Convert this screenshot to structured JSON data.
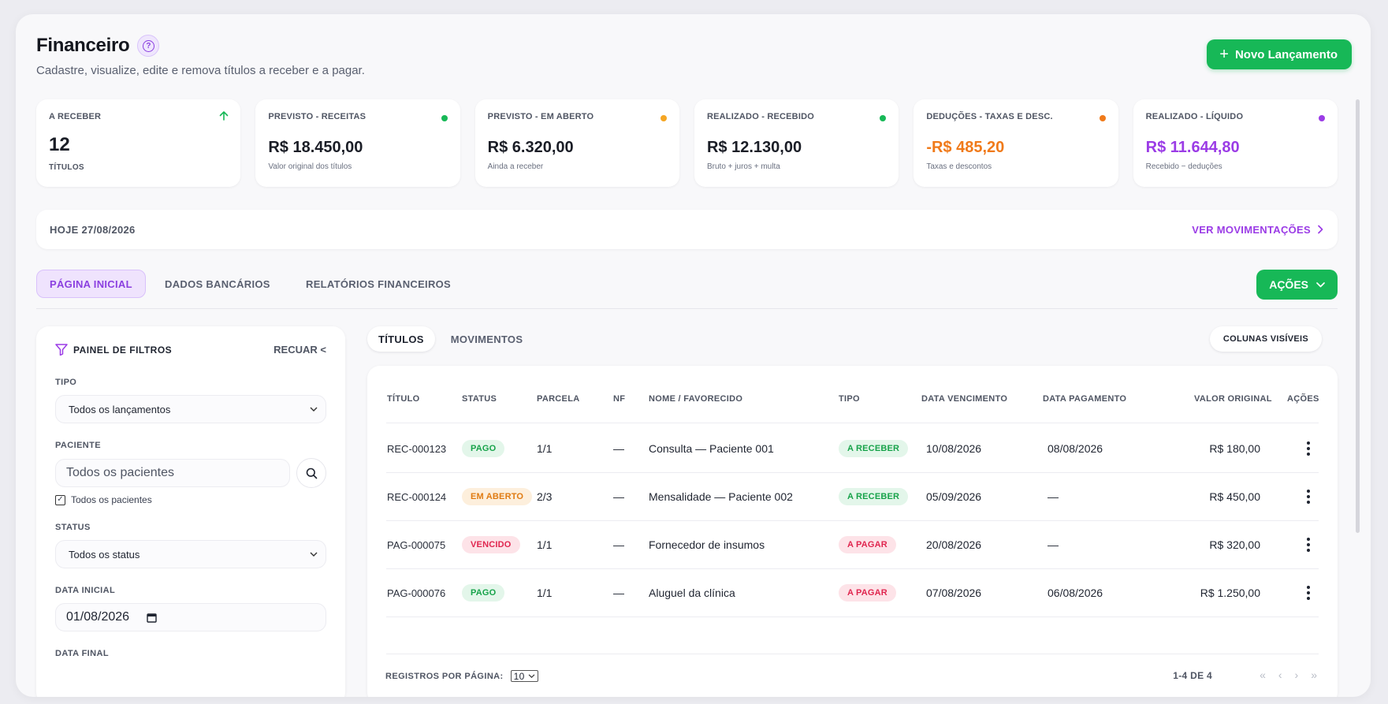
{
  "header": {
    "title": "Financeiro",
    "subtitle": "Cadastre, visualize, edite e remova títulos a receber e a pagar.",
    "new_button": "Novo Lançamento"
  },
  "kpis": [
    {
      "label": "A RECEBER",
      "value": "12",
      "sub": "TÍTULOS",
      "indicator": "arrow-up-icon",
      "color": "#17b857"
    },
    {
      "label": "PREVISTO - RECEITAS",
      "value": "R$ 18.450,00",
      "sub": "Valor original dos títulos",
      "color": "#17b857"
    },
    {
      "label": "PREVISTO - EM ABERTO",
      "value": "R$ 6.320,00",
      "sub": "Ainda a receber",
      "color": "#f5a623"
    },
    {
      "label": "REALIZADO - RECEBIDO",
      "value": "R$ 12.130,00",
      "sub": "Bruto + juros + multa",
      "color": "#17b857"
    },
    {
      "label": "DEDUÇÕES - TAXAS E DESC.",
      "value": "-R$ 485,20",
      "sub": "Taxas e descontos",
      "color": "#f07a1a"
    },
    {
      "label": "REALIZADO - LÍQUIDO",
      "value": "R$ 11.644,80",
      "sub": "Recebido − deduções",
      "color": "#9b3ce6"
    }
  ],
  "today": {
    "label": "HOJE 27/08/2026",
    "link": "VER MOVIMENTAÇÕES"
  },
  "tabs": [
    {
      "label": "PÁGINA INICIAL",
      "active": true
    },
    {
      "label": "DADOS BANCÁRIOS",
      "active": false
    },
    {
      "label": "RELATÓRIOS FINANCEIROS",
      "active": false
    }
  ],
  "actions_button": "AÇÕES",
  "filters": {
    "title": "PAINEL DE FILTROS",
    "collapse": "RECUAR <",
    "tipo_label": "TIPO",
    "tipo_value": "Todos os lançamentos",
    "paciente_label": "PACIENTE",
    "paciente_placeholder": "Todos os pacientes",
    "paciente_checkbox": "Todos os pacientes",
    "status_label": "STATUS",
    "status_value": "Todos os status",
    "data_inicial_label": "DATA INICIAL",
    "data_inicial_value": "01/08/2026",
    "data_final_label": "DATA FINAL"
  },
  "sub_tabs": [
    {
      "label": "TÍTULOS",
      "active": true
    },
    {
      "label": "MOVIMENTOS",
      "active": false
    }
  ],
  "columns_button": "COLUNAS VISÍVEIS",
  "table": {
    "columns": [
      "TÍTULO",
      "STATUS",
      "PARCELA",
      "NF",
      "NOME / FAVORECIDO",
      "TIPO",
      "DATA VENCIMENTO",
      "DATA PAGAMENTO",
      "VALOR ORIGINAL",
      "AÇÕES"
    ],
    "rows": [
      {
        "titulo": "REC-000123",
        "status": "PAGO",
        "parcela": "1/1",
        "nf": "—",
        "nome": "Consulta — Paciente 001",
        "tipo": "A RECEBER",
        "vencimento": "10/08/2026",
        "pagamento": "08/08/2026",
        "valor": "R$ 180,00"
      },
      {
        "titulo": "REC-000124",
        "status": "EM ABERTO",
        "parcela": "2/3",
        "nf": "—",
        "nome": "Mensalidade — Paciente 002",
        "tipo": "A RECEBER",
        "vencimento": "05/09/2026",
        "pagamento": "—",
        "valor": "R$ 450,00"
      },
      {
        "titulo": "PAG-000075",
        "status": "VENCIDO",
        "parcela": "1/1",
        "nf": "—",
        "nome": "Fornecedor de insumos",
        "tipo": "A PAGAR",
        "vencimento": "20/08/2026",
        "pagamento": "—",
        "valor": "R$ 320,00"
      },
      {
        "titulo": "PAG-000076",
        "status": "PAGO",
        "parcela": "1/1",
        "nf": "—",
        "nome": "Aluguel da clínica",
        "tipo": "A PAGAR",
        "vencimento": "07/08/2026",
        "pagamento": "06/08/2026",
        "valor": "R$ 1.250,00"
      }
    ]
  },
  "pagination": {
    "per_page_label": "REGISTROS POR PÁGINA:",
    "per_page_value": "10",
    "range": "1-4 DE 4"
  },
  "badge_colors": {
    "PAGO": {
      "bg": "#e3f6ea",
      "fg": "#17a34a"
    },
    "EM ABERTO": {
      "bg": "#fdefdc",
      "fg": "#e07b12"
    },
    "VENCIDO": {
      "bg": "#fde3e8",
      "fg": "#e0264f"
    },
    "A RECEBER": {
      "bg": "#e3f6ea",
      "fg": "#17a34a"
    },
    "A PAGAR": {
      "bg": "#fde3e8",
      "fg": "#e0264f"
    }
  }
}
